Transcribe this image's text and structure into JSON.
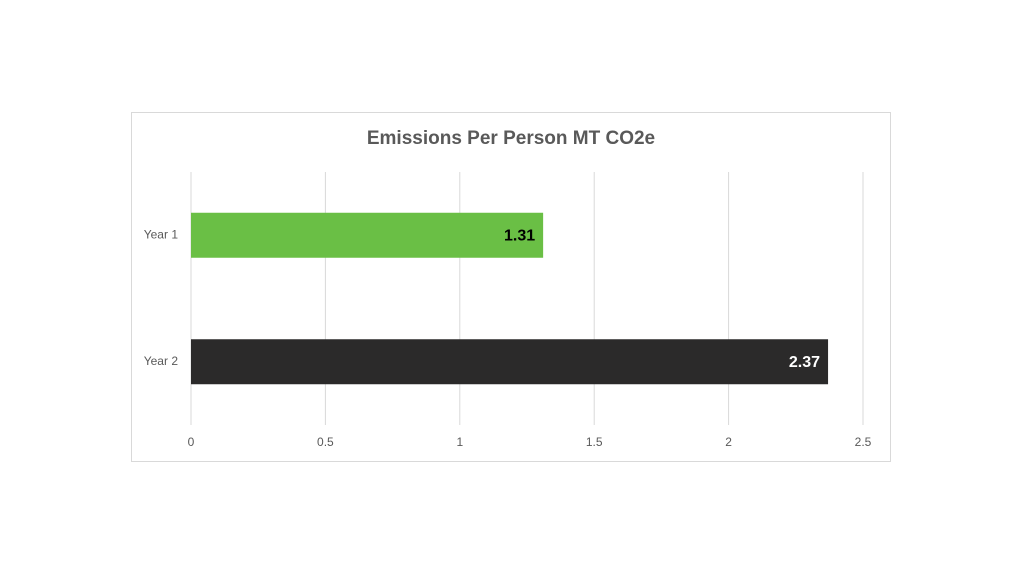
{
  "chart_data": {
    "type": "bar",
    "orientation": "horizontal",
    "title": "Emissions Per Person MT CO2e",
    "categories": [
      "Year 1",
      "Year 2"
    ],
    "values": [
      1.31,
      2.37
    ],
    "colors": [
      "#6abf45",
      "#2b2a2a"
    ],
    "xlim": [
      0,
      2.5
    ],
    "xticks": [
      0,
      0.5,
      1,
      1.5,
      2,
      2.5
    ],
    "grid": true
  }
}
